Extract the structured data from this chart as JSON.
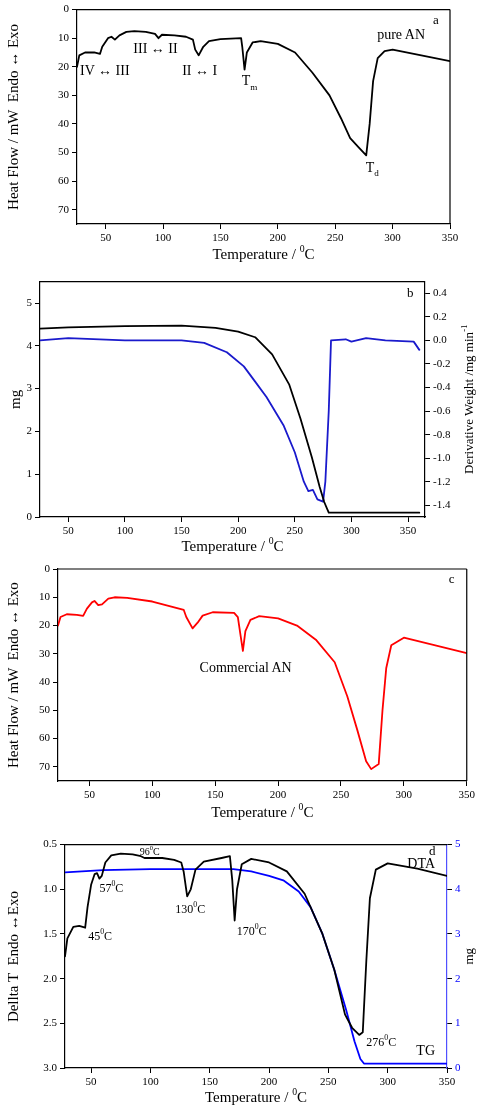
{
  "chart_data": [
    {
      "type": "line",
      "xlabel": "Temperature / $^{0}$C",
      "ylabel": "Heat Flow / mW  Endo ↔ Exo",
      "xlim": [
        25,
        350
      ],
      "xticks": [
        50,
        100,
        150,
        200,
        250,
        300,
        350
      ],
      "ylim": [
        75,
        0
      ],
      "yticks": [
        0,
        10,
        20,
        30,
        40,
        50,
        60,
        70
      ],
      "marker": "none",
      "series": [
        {
          "color": "#000000",
          "x": [
            25,
            27,
            32,
            40,
            45,
            47,
            52,
            55,
            58,
            62,
            68,
            75,
            85,
            93,
            96,
            99,
            110,
            120,
            126,
            128,
            131,
            135,
            140,
            150,
            168,
            169,
            171,
            173,
            178,
            185,
            200,
            215,
            230,
            245,
            255,
            263,
            270,
            277,
            280,
            283,
            287,
            293,
            300,
            325,
            350
          ],
          "values": [
            20,
            16,
            15,
            15,
            15.5,
            13,
            10,
            9.5,
            10.5,
            9,
            7.8,
            7.5,
            7.8,
            8.5,
            10,
            8.8,
            9,
            9.5,
            10.5,
            14,
            16,
            13,
            11,
            10.3,
            10,
            13,
            21,
            15,
            11.5,
            11,
            12,
            15,
            22,
            30,
            38,
            45,
            48,
            51,
            40,
            25,
            17,
            14.5,
            14,
            16,
            18
          ]
        }
      ],
      "annotations": [
        "a",
        "pure AN",
        {
          "text": "IV ↔ III",
          "x": 45,
          "y": 15.5
        },
        {
          "text": "III ↔ II",
          "x": 96,
          "y": 10
        },
        {
          "text": "II ↔ I",
          "x": 131,
          "y": 16
        },
        {
          "text": "T$_{m}$",
          "x": 171,
          "y": 21
        },
        {
          "text": "T$_{d}$",
          "x": 277,
          "y": 51
        }
      ]
    },
    {
      "type": "line",
      "xlabel": "Temperature / $^{0}$C",
      "ylabel": "mg",
      "y2label": "Derivative Weight /mg min$^{-1}$",
      "xlim": [
        25,
        365
      ],
      "xticks": [
        50,
        100,
        150,
        200,
        250,
        300,
        350
      ],
      "ylim": [
        0,
        5.5
      ],
      "yticks": [
        0,
        1,
        2,
        3,
        4,
        5
      ],
      "y2lim": [
        -1.5,
        0.5
      ],
      "y2ticks": [
        {
          "value": 0.4,
          "label": "0.4"
        },
        {
          "value": 0.2,
          "label": "0.2"
        },
        {
          "value": 0,
          "label": "0.0"
        },
        {
          "value": -0.2,
          "label": "-0.2"
        },
        {
          "value": -0.4,
          "label": "-0.4"
        },
        {
          "value": -0.6,
          "label": "-0.6"
        },
        {
          "value": -0.8,
          "label": "-0.8"
        },
        {
          "value": -1,
          "label": "-1.0"
        },
        {
          "value": -1.2,
          "label": "-1.2"
        },
        {
          "value": -1.4,
          "label": "-1.4"
        }
      ],
      "marker": "none",
      "series": [
        {
          "color": "#000000",
          "x": [
            25,
            50,
            100,
            150,
            180,
            200,
            215,
            230,
            245,
            255,
            265,
            272,
            276,
            280,
            300,
            360
          ],
          "values": [
            4.4,
            4.43,
            4.46,
            4.47,
            4.42,
            4.33,
            4.2,
            3.8,
            3.1,
            2.3,
            1.4,
            0.7,
            0.35,
            0.1,
            0.1,
            0.1
          ]
        },
        {
          "color": "#1a1acc",
          "axis": "y2",
          "x": [
            25,
            50,
            100,
            150,
            170,
            190,
            205,
            215,
            225,
            240,
            250,
            258,
            262,
            266,
            270,
            275,
            277,
            280,
            282,
            295,
            300,
            313,
            330,
            355,
            360
          ],
          "values": [
            0,
            0.02,
            0,
            0,
            -0.02,
            -0.1,
            -0.22,
            -0.35,
            -0.48,
            -0.72,
            -0.95,
            -1.2,
            -1.28,
            -1.27,
            -1.35,
            -1.37,
            -1.2,
            -0.6,
            0,
            0.01,
            -0.01,
            0.02,
            0,
            -0.01,
            -0.08
          ]
        }
      ],
      "annotations": [
        "b"
      ]
    },
    {
      "type": "line",
      "xlabel": "Temperature / $^{0}$C",
      "ylabel": "Heat Flow / mW  Endo ↔ Exo",
      "xlim": [
        25,
        350
      ],
      "xticks": [
        50,
        100,
        150,
        200,
        250,
        300,
        350
      ],
      "ylim": [
        75,
        0
      ],
      "yticks": [
        0,
        10,
        20,
        30,
        40,
        50,
        60,
        70
      ],
      "marker": "none",
      "series": [
        {
          "color": "#ff0000",
          "x": [
            25,
            27,
            32,
            40,
            45,
            48,
            52,
            54,
            57,
            60,
            65,
            70,
            80,
            100,
            125,
            127,
            132,
            136,
            140,
            148,
            165,
            168,
            170,
            172,
            174,
            178,
            185,
            200,
            215,
            230,
            245,
            255,
            263,
            270,
            274,
            280,
            283,
            286,
            290,
            300,
            350
          ],
          "values": [
            20,
            17,
            16,
            16.2,
            16.6,
            14,
            11.8,
            11.3,
            12.8,
            12.5,
            10.5,
            10,
            10.2,
            11.5,
            14.5,
            17,
            21,
            19,
            16.5,
            15.3,
            15.5,
            17,
            23,
            29,
            22,
            18,
            16.7,
            17.5,
            20,
            25,
            33,
            45,
            57,
            68,
            70.8,
            69,
            50,
            35,
            27,
            24.3,
            29.8
          ]
        }
      ],
      "annotations": [
        "c",
        "Commercial AN"
      ]
    },
    {
      "type": "line",
      "xlabel": "Temperature / $^{0}$C",
      "ylabel": "Dellta T  Endo ↔Exo",
      "y2label": "mg",
      "xlim": [
        28,
        350
      ],
      "xticks": [
        50,
        100,
        150,
        200,
        250,
        300,
        350
      ],
      "ylim": [
        3,
        0.5
      ],
      "yticks": [
        0.5,
        {
          "value": 1,
          "label": "1.0"
        },
        1.5,
        {
          "value": 2,
          "label": "2.0"
        },
        2.5,
        {
          "value": 3,
          "label": "3.0"
        }
      ],
      "y2lim": [
        0,
        5
      ],
      "y2ticks": [
        0,
        1,
        2,
        3,
        4,
        5
      ],
      "marker": "none",
      "series": [
        {
          "name": "DTA",
          "color": "#000000",
          "x": [
            28,
            30,
            35,
            40,
            45,
            47,
            50,
            53,
            55,
            57,
            59,
            62,
            67,
            75,
            85,
            92,
            95,
            110,
            120,
            126,
            128,
            131,
            134,
            138,
            145,
            160,
            167,
            169,
            171,
            173,
            177,
            185,
            200,
            215,
            230,
            245,
            255,
            264,
            270,
            276,
            279,
            282,
            285,
            290,
            300,
            325,
            350
          ],
          "values": [
            1.75,
            1.55,
            1.42,
            1.41,
            1.43,
            1.2,
            0.95,
            0.83,
            0.82,
            0.88,
            0.85,
            0.7,
            0.62,
            0.6,
            0.61,
            0.63,
            0.65,
            0.65,
            0.67,
            0.7,
            0.8,
            1.08,
            1,
            0.78,
            0.69,
            0.65,
            0.63,
            0.9,
            1.35,
            1,
            0.72,
            0.66,
            0.7,
            0.8,
            1.05,
            1.5,
            1.9,
            2.4,
            2.55,
            2.63,
            2.6,
            1.8,
            1.1,
            0.78,
            0.71,
            0.77,
            0.85
          ]
        },
        {
          "name": "TG",
          "color": "#0000ff",
          "axis": "y2",
          "x": [
            28,
            60,
            100,
            170,
            185,
            200,
            212,
            225,
            235,
            245,
            255,
            265,
            272,
            277,
            280,
            350
          ],
          "values": [
            4.38,
            4.43,
            4.45,
            4.45,
            4.4,
            4.3,
            4.2,
            3.95,
            3.6,
            3,
            2.2,
            1.3,
            0.6,
            0.2,
            0.1,
            0.1
          ]
        }
      ],
      "annotations": [
        "d",
        {
          "text": "45$^{0}$C",
          "x": 45,
          "y": 1.43
        },
        {
          "text": "57$^{0}$C",
          "x": 57,
          "y": 0.88
        },
        {
          "text": "96$^{0}$C",
          "x": 96,
          "y": 0.65
        },
        {
          "text": "130$^{0}$C",
          "x": 131,
          "y": 1.08
        },
        {
          "text": "170$^{0}$C",
          "x": 171,
          "y": 1.35
        },
        {
          "text": "276$^{0}$C",
          "x": 276,
          "y": 2.63
        }
      ]
    }
  ]
}
